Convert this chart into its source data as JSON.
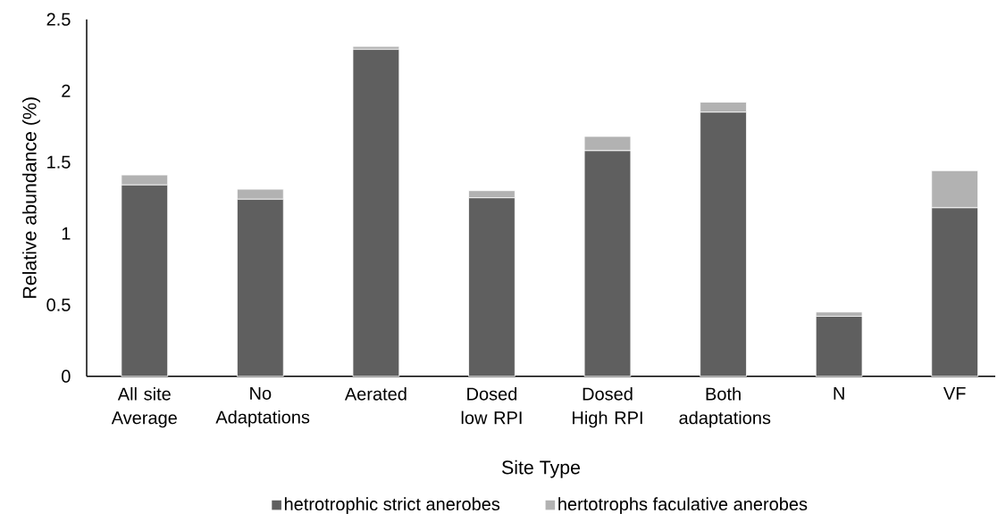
{
  "chart_data": {
    "type": "bar",
    "stacked": true,
    "xlabel": "Site Type",
    "ylabel": "Relative abundance (%)",
    "categories": [
      "All site Average",
      "No Adaptations",
      "Aerated",
      "Dosed low RPI",
      "Dosed High RPI",
      "Both adaptations",
      "N",
      "VF"
    ],
    "series": [
      {
        "name": "hetrotrophic strict anerobes",
        "color": "#5f5f5f",
        "values": [
          1.34,
          1.24,
          2.29,
          1.25,
          1.58,
          1.85,
          0.42,
          1.18
        ]
      },
      {
        "name": "hertotrophs faculative anerobes",
        "color": "#b2b2b2",
        "values": [
          0.07,
          0.07,
          0.02,
          0.05,
          0.1,
          0.07,
          0.03,
          0.26
        ]
      }
    ],
    "ylim": [
      0,
      2.5
    ],
    "yticks": [
      0,
      0.5,
      1,
      1.5,
      2,
      2.5
    ],
    "legend": "bottom"
  }
}
